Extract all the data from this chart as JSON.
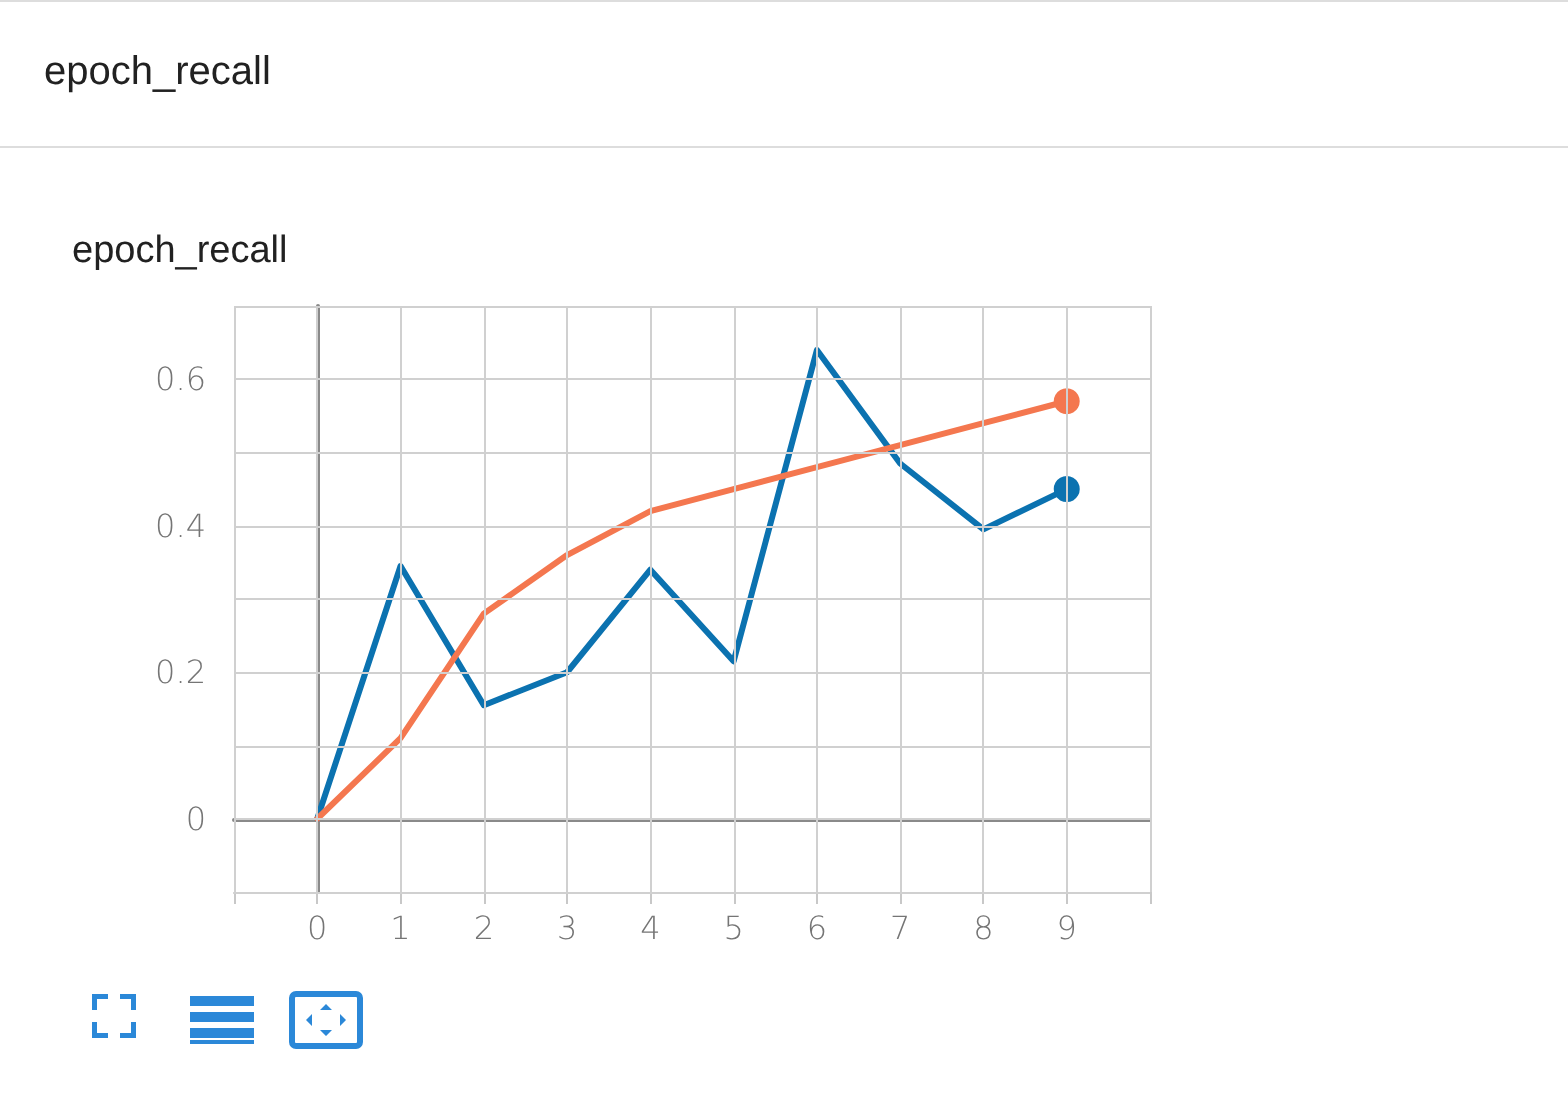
{
  "chart_data": {
    "type": "line",
    "title": "epoch_recall",
    "annotations": [
      "epoch_recall"
    ],
    "x": [
      0,
      1,
      2,
      3,
      4,
      5,
      6,
      7,
      8,
      9
    ],
    "series": [
      {
        "color": "#0b72b0",
        "values": [
          0,
          0.345,
          0.155,
          0.2,
          0.34,
          0.215,
          0.64,
          0.485,
          0.395,
          0.45
        ]
      },
      {
        "color": "#f4774f",
        "values": [
          0,
          0.11,
          0.28,
          0.36,
          0.42,
          0.45,
          0.48,
          0.51,
          0.54,
          0.57
        ]
      }
    ],
    "xlim": [
      -1,
      10
    ],
    "xticks": [
      {
        "value": -1,
        "label": null
      },
      0,
      1,
      2,
      3,
      4,
      5,
      6,
      7,
      8,
      9,
      {
        "value": 10,
        "label": null
      }
    ],
    "ylim": [
      -0.1,
      0.7
    ],
    "yticks": [
      {
        "value": -0.1,
        "label": null
      },
      0,
      {
        "value": 0.1,
        "label": null
      },
      0.2,
      {
        "value": 0.3,
        "label": null
      },
      0.4,
      {
        "value": 0.5,
        "label": null
      },
      0.6,
      {
        "value": 0.7,
        "label": null
      }
    ],
    "grid": true,
    "line_style": "solid"
  }
}
